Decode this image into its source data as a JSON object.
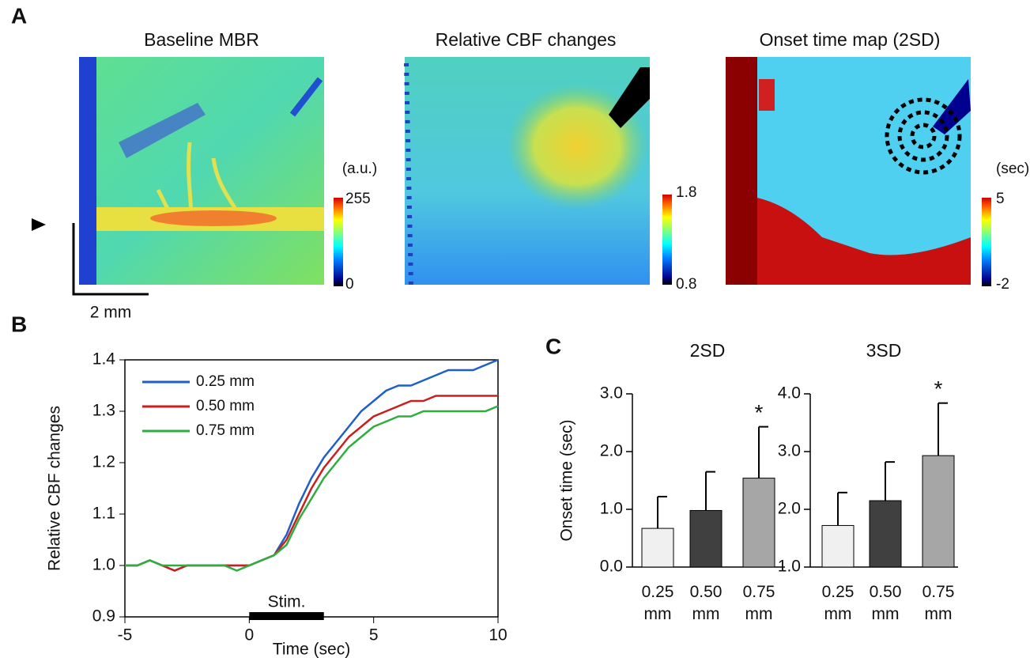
{
  "panel_labels": [
    "A",
    "B",
    "C"
  ],
  "maps": [
    {
      "title": "Baseline MBR",
      "unit": "(a.u.)",
      "cbar_max": 255,
      "cbar_min": 0
    },
    {
      "title": "Relative CBF changes",
      "cbar_max": 1.8,
      "cbar_min": 0.8
    },
    {
      "title": "Onset time map (2SD)",
      "unit": "(sec)",
      "cbar_max": 5,
      "cbar_min": -2
    }
  ],
  "scale_bar": "2 mm",
  "chart_data": [
    {
      "type": "line",
      "xlabel": "Time  (sec)",
      "ylabel": "Relative CBF changes",
      "x": [
        -5,
        -4.5,
        -4,
        -3.5,
        -3,
        -2.5,
        -2,
        -1.5,
        -1,
        -0.5,
        0,
        0.5,
        1,
        1.5,
        2,
        2.5,
        3,
        3.5,
        4,
        4.5,
        5,
        5.5,
        6,
        6.5,
        7,
        7.5,
        8,
        8.5,
        9,
        9.5,
        10
      ],
      "series": [
        {
          "name": "0.25 mm",
          "color": "#1f5fc8",
          "values": [
            1.0,
            1.0,
            1.01,
            1.0,
            0.99,
            1.0,
            1.0,
            1.0,
            1.0,
            1.0,
            1.0,
            1.01,
            1.02,
            1.06,
            1.12,
            1.17,
            1.21,
            1.24,
            1.27,
            1.3,
            1.32,
            1.34,
            1.35,
            1.35,
            1.36,
            1.37,
            1.38,
            1.38,
            1.38,
            1.39,
            1.4
          ]
        },
        {
          "name": "0.50 mm",
          "color": "#c8201e",
          "values": [
            1.0,
            1.0,
            1.01,
            1.0,
            0.99,
            1.0,
            1.0,
            1.0,
            1.0,
            1.0,
            1.0,
            1.01,
            1.02,
            1.05,
            1.1,
            1.15,
            1.19,
            1.22,
            1.25,
            1.27,
            1.29,
            1.3,
            1.31,
            1.32,
            1.32,
            1.33,
            1.33,
            1.33,
            1.33,
            1.33,
            1.33
          ]
        },
        {
          "name": "0.75 mm",
          "color": "#2eae3e",
          "values": [
            1.0,
            1.0,
            1.01,
            1.0,
            1.0,
            1.0,
            1.0,
            1.0,
            1.0,
            0.99,
            1.0,
            1.01,
            1.02,
            1.04,
            1.09,
            1.13,
            1.17,
            1.2,
            1.23,
            1.25,
            1.27,
            1.28,
            1.29,
            1.29,
            1.3,
            1.3,
            1.3,
            1.3,
            1.3,
            1.3,
            1.31
          ]
        }
      ],
      "xlim": [
        -5,
        10
      ],
      "xticks": [
        -5,
        0,
        5,
        10
      ],
      "ylim": [
        0.9,
        1.4
      ],
      "yticks": [
        0.9,
        {
          "value": 1,
          "label": "1.0"
        },
        1.1,
        1.2,
        1.3,
        1.4
      ],
      "legend": "upper-left",
      "stim": {
        "label": "Stim.",
        "start": 0,
        "end": 3
      }
    },
    {
      "type": "bar",
      "title": "2SD",
      "ylabel": "Onset time  (sec)",
      "categories": [
        "0.25 mm",
        "0.50 mm",
        "0.75 mm"
      ],
      "values": [
        0.67,
        0.98,
        1.54
      ],
      "errors": [
        0.55,
        0.67,
        0.89
      ],
      "colors": [
        "#f0f0f0",
        "#404040",
        "#a6a6a6"
      ],
      "ylim": [
        0,
        3
      ],
      "yticks": [
        {
          "value": 0,
          "label": "0.0"
        },
        {
          "value": 1,
          "label": "1.0"
        },
        {
          "value": 2,
          "label": "2.0"
        },
        {
          "value": 3,
          "label": "3.0"
        }
      ],
      "annotations": [
        {
          "text": "*",
          "index": 2
        }
      ]
    },
    {
      "type": "bar",
      "title": "3SD",
      "categories": [
        "0.25 mm",
        "0.50 mm",
        "0.75 mm"
      ],
      "values": [
        1.72,
        2.15,
        2.93
      ],
      "errors": [
        0.57,
        0.67,
        0.91
      ],
      "colors": [
        "#f0f0f0",
        "#404040",
        "#a6a6a6"
      ],
      "ylim": [
        1,
        4
      ],
      "yticks": [
        {
          "value": 1,
          "label": "1.0"
        },
        {
          "value": 2,
          "label": "2.0"
        },
        {
          "value": 3,
          "label": "3.0"
        },
        {
          "value": 4,
          "label": "4.0"
        }
      ],
      "annotations": [
        {
          "text": "*",
          "index": 2
        }
      ]
    }
  ]
}
